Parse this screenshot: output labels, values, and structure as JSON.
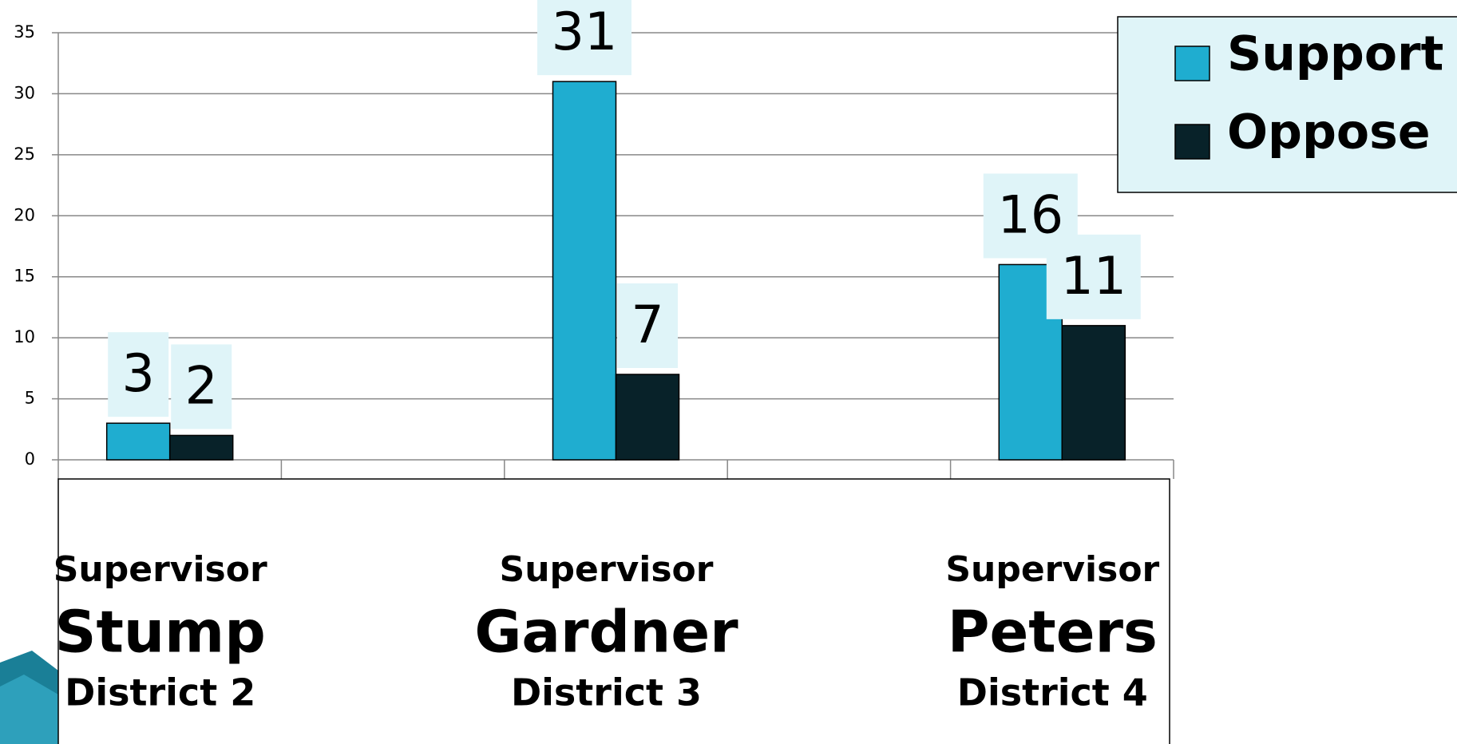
{
  "chart_data": {
    "type": "bar",
    "categories": [
      [
        "Supervisor",
        "Stump",
        "District 2"
      ],
      null,
      [
        "Supervisor",
        "Gardner",
        "District 3"
      ],
      null,
      [
        "Supervisor",
        "Peters",
        "District 4"
      ]
    ],
    "series": [
      {
        "name": "Support",
        "color": "#1fadd0",
        "values": [
          3,
          null,
          31,
          null,
          16
        ]
      },
      {
        "name": "Oppose",
        "color": "#082229",
        "values": [
          2,
          null,
          7,
          null,
          11
        ]
      }
    ],
    "ylim": [
      0,
      35
    ],
    "yticks": [
      0,
      5,
      10,
      15,
      20,
      25,
      30,
      35
    ],
    "grid": true,
    "legend": "top-right"
  }
}
